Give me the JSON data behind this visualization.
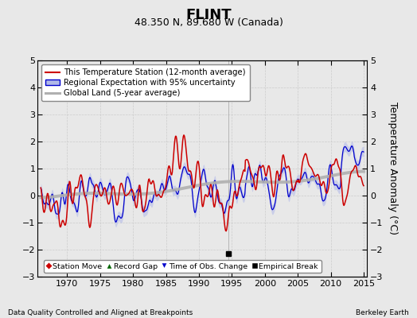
{
  "title": "FLINT",
  "subtitle": "48.350 N, 89.680 W (Canada)",
  "ylabel": "Temperature Anomaly (°C)",
  "xlabel_left": "Data Quality Controlled and Aligned at Breakpoints",
  "xlabel_right": "Berkeley Earth",
  "ylim": [
    -3,
    5
  ],
  "xlim": [
    1965.5,
    2015.5
  ],
  "yticks": [
    -3,
    -2,
    -1,
    0,
    1,
    2,
    3,
    4,
    5
  ],
  "xticks": [
    1970,
    1975,
    1980,
    1985,
    1990,
    1995,
    2000,
    2005,
    2010,
    2015
  ],
  "bg_color": "#e8e8e8",
  "plot_bg_color": "#e8e8e8",
  "red_color": "#cc0000",
  "blue_color": "#0000cc",
  "blue_fill_color": "#b0b8e8",
  "gray_color": "#b0b0b0",
  "empirical_break_year": 1994.5,
  "empirical_break_y": -2.15,
  "legend_items": [
    "This Temperature Station (12-month average)",
    "Regional Expectation with 95% uncertainty",
    "Global Land (5-year average)"
  ],
  "bottom_legend": [
    {
      "label": "Station Move",
      "color": "#cc0000",
      "marker": "D"
    },
    {
      "label": "Record Gap",
      "color": "#006600",
      "marker": "^"
    },
    {
      "label": "Time of Obs. Change",
      "color": "#0000cc",
      "marker": "v"
    },
    {
      "label": "Empirical Break",
      "color": "#000000",
      "marker": "s"
    }
  ],
  "title_fontsize": 13,
  "subtitle_fontsize": 9,
  "tick_fontsize": 8,
  "label_fontsize": 8
}
